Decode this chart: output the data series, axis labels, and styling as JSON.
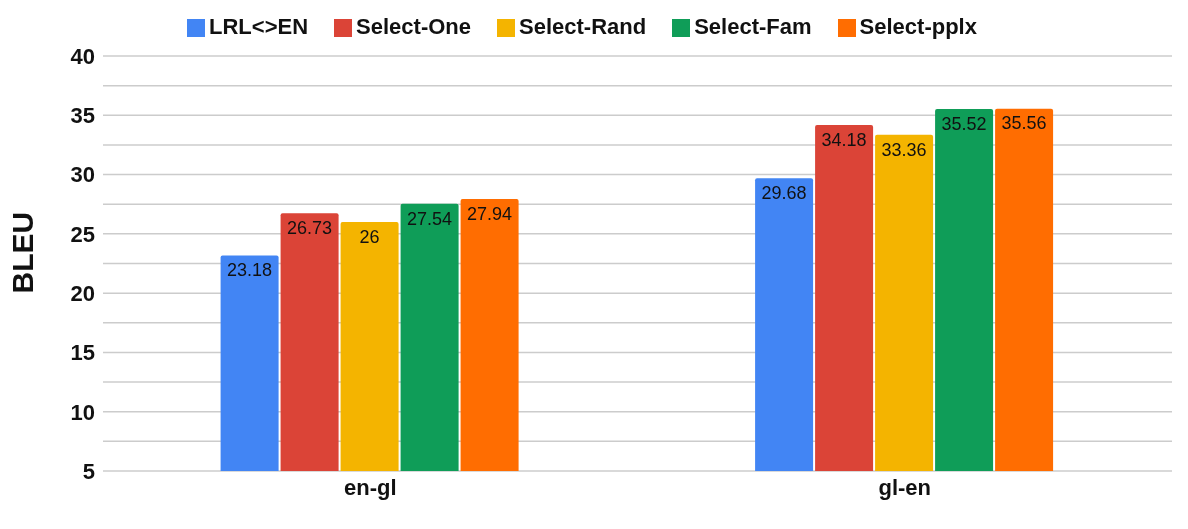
{
  "chart_data": {
    "type": "bar",
    "ylabel": "BLEU",
    "categories": [
      "en-gl",
      "gl-en"
    ],
    "series": [
      {
        "name": "LRL<>EN",
        "color": "#4285f4",
        "values": [
          23.18,
          29.68
        ]
      },
      {
        "name": "Select-One",
        "color": "#db4437",
        "values": [
          26.73,
          34.18
        ]
      },
      {
        "name": "Select-Rand",
        "color": "#f4b400",
        "values": [
          26,
          33.36
        ]
      },
      {
        "name": "Select-Fam",
        "color": "#0f9d58",
        "values": [
          27.54,
          35.52
        ]
      },
      {
        "name": "Select-pplx",
        "color": "#ff6d01",
        "values": [
          27.94,
          35.56
        ]
      }
    ],
    "ylim": [
      5,
      40
    ],
    "yticks": [
      5,
      {
        "value": 7.5,
        "label": null
      },
      10,
      {
        "value": 12.5,
        "label": null
      },
      15,
      {
        "value": 17.5,
        "label": null
      },
      20,
      {
        "value": 22.5,
        "label": null
      },
      25,
      {
        "value": 27.5,
        "label": null
      },
      30,
      {
        "value": 32.5,
        "label": null
      },
      35,
      {
        "value": 37.5,
        "label": null
      },
      40
    ],
    "grid": "y",
    "legend": "top",
    "data_labels": true
  }
}
